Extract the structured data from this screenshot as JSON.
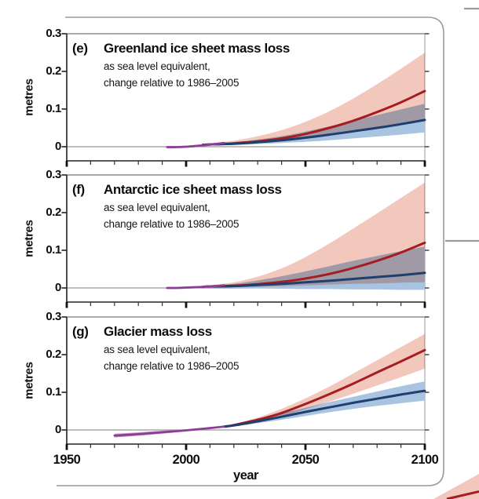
{
  "figure": {
    "ylabel": "metres",
    "xlabel": "year",
    "y_tick_labels": [
      "0.3",
      "0.2",
      "0.1",
      "0"
    ],
    "x_tick_labels": [
      "1950",
      "2000",
      "2050",
      "2100"
    ],
    "panels": [
      {
        "label": "(e)",
        "title": "Greenland ice sheet mass loss",
        "subtitle_1": "as sea level equivalent,",
        "subtitle_2": "change relative to 1986–2005"
      },
      {
        "label": "(f)",
        "title": "Antarctic ice sheet mass loss",
        "subtitle_1": "as sea level equivalent,",
        "subtitle_2": "change relative to 1986–2005"
      },
      {
        "label": "(g)",
        "title": "Glacier mass loss",
        "subtitle_1": "as sea level equivalent,",
        "subtitle_2": "change relative to 1986–2005"
      }
    ],
    "colors": {
      "rcp85_line": "#a51c21",
      "rcp85_band": "#f2c8bd",
      "rcp26_line": "#203e6e",
      "rcp26_band": "#a8c4e0",
      "observed_line": "#8d3c96",
      "observed_band": "#c48cc8",
      "frame": "#9a9a9a",
      "axis": "#222222",
      "zero_line": "#999999"
    }
  },
  "chart_data": [
    {
      "panel": "e",
      "type": "line",
      "title": "Greenland ice sheet mass loss",
      "units": "metres (sea level equivalent, change relative to 1986–2005)",
      "xlim": [
        1950,
        2100
      ],
      "ylim": [
        -0.0375,
        0.3
      ],
      "x_ticks": [
        1950,
        2000,
        2050,
        2100
      ],
      "y_ticks": [
        0,
        0.1,
        0.2,
        0.3
      ],
      "observed": {
        "x": [
          1992,
          1996,
          2000,
          2004,
          2008,
          2012,
          2016
        ],
        "y": [
          -0.001,
          -0.001,
          0.0,
          0.002,
          0.004,
          0.007,
          0.01
        ],
        "lo": [
          -0.004,
          -0.004,
          -0.003,
          -0.001,
          0.001,
          0.004,
          0.008
        ],
        "hi": [
          0.002,
          0.002,
          0.003,
          0.005,
          0.007,
          0.01,
          0.012
        ]
      },
      "rcp85": {
        "x": [
          2007,
          2010,
          2020,
          2030,
          2040,
          2050,
          2060,
          2070,
          2080,
          2090,
          2100
        ],
        "y": [
          0.005,
          0.006,
          0.009,
          0.014,
          0.022,
          0.034,
          0.05,
          0.069,
          0.092,
          0.118,
          0.148
        ],
        "lo": [
          0.003,
          0.004,
          0.006,
          0.009,
          0.014,
          0.021,
          0.03,
          0.041,
          0.049,
          0.058,
          0.068
        ],
        "hi": [
          0.007,
          0.009,
          0.016,
          0.028,
          0.044,
          0.066,
          0.094,
          0.128,
          0.166,
          0.207,
          0.25
        ]
      },
      "rcp26": {
        "x": [
          2007,
          2010,
          2020,
          2030,
          2040,
          2050,
          2060,
          2070,
          2080,
          2090,
          2100
        ],
        "y": [
          0.005,
          0.006,
          0.008,
          0.012,
          0.017,
          0.024,
          0.032,
          0.041,
          0.05,
          0.06,
          0.071
        ],
        "lo": [
          0.003,
          0.004,
          0.005,
          0.007,
          0.01,
          0.013,
          0.017,
          0.022,
          0.027,
          0.032,
          0.038
        ],
        "hi": [
          0.007,
          0.008,
          0.012,
          0.019,
          0.028,
          0.04,
          0.054,
          0.069,
          0.084,
          0.099,
          0.114
        ]
      }
    },
    {
      "panel": "f",
      "type": "line",
      "title": "Antarctic ice sheet mass loss",
      "units": "metres (sea level equivalent, change relative to 1986–2005)",
      "xlim": [
        1950,
        2100
      ],
      "ylim": [
        -0.0375,
        0.3
      ],
      "x_ticks": [
        1950,
        2000,
        2050,
        2100
      ],
      "y_ticks": [
        0,
        0.1,
        0.2,
        0.3
      ],
      "observed": {
        "x": [
          1992,
          1996,
          2000,
          2004,
          2008,
          2012,
          2016
        ],
        "y": [
          0.0,
          0.0,
          0.001,
          0.002,
          0.003,
          0.005,
          0.007
        ],
        "lo": [
          -0.003,
          -0.003,
          -0.002,
          -0.001,
          0.0,
          0.002,
          0.005
        ],
        "hi": [
          0.003,
          0.003,
          0.004,
          0.005,
          0.006,
          0.008,
          0.009
        ]
      },
      "rcp85": {
        "x": [
          2007,
          2010,
          2020,
          2030,
          2040,
          2050,
          2060,
          2070,
          2080,
          2090,
          2100
        ],
        "y": [
          0.003,
          0.004,
          0.006,
          0.01,
          0.016,
          0.025,
          0.037,
          0.053,
          0.072,
          0.094,
          0.12
        ],
        "lo": [
          0.001,
          0.001,
          0.002,
          0.003,
          0.005,
          0.007,
          0.009,
          0.011,
          0.012,
          0.014,
          0.015
        ],
        "hi": [
          0.005,
          0.007,
          0.015,
          0.03,
          0.052,
          0.082,
          0.118,
          0.158,
          0.198,
          0.239,
          0.28
        ]
      },
      "rcp26": {
        "x": [
          2007,
          2010,
          2020,
          2030,
          2040,
          2050,
          2060,
          2070,
          2080,
          2090,
          2100
        ],
        "y": [
          0.003,
          0.004,
          0.005,
          0.008,
          0.011,
          0.015,
          0.019,
          0.024,
          0.029,
          0.034,
          0.04
        ],
        "lo": [
          0.001,
          0.001,
          0.0,
          -0.001,
          -0.002,
          -0.003,
          -0.003,
          -0.004,
          -0.004,
          -0.005,
          -0.005
        ],
        "hi": [
          0.005,
          0.006,
          0.011,
          0.02,
          0.031,
          0.044,
          0.058,
          0.072,
          0.085,
          0.098,
          0.11
        ]
      }
    },
    {
      "panel": "g",
      "type": "line",
      "title": "Glacier mass loss",
      "units": "metres (sea level equivalent, change relative to 1986–2005)",
      "xlim": [
        1950,
        2100
      ],
      "ylim": [
        -0.0375,
        0.3
      ],
      "x_ticks": [
        1950,
        2000,
        2050,
        2100
      ],
      "y_ticks": [
        0,
        0.1,
        0.2,
        0.3
      ],
      "observed": {
        "x": [
          1970,
          1980,
          1990,
          2000,
          2010,
          2016
        ],
        "y": [
          -0.015,
          -0.011,
          -0.006,
          -0.001,
          0.005,
          0.009
        ],
        "lo": [
          -0.02,
          -0.0155,
          -0.01,
          -0.004,
          0.002,
          0.007
        ],
        "hi": [
          -0.01,
          -0.0065,
          -0.002,
          0.002,
          0.008,
          0.011
        ]
      },
      "rcp85": {
        "x": [
          2016,
          2020,
          2030,
          2040,
          2050,
          2060,
          2070,
          2080,
          2090,
          2100
        ],
        "y": [
          0.009,
          0.013,
          0.027,
          0.045,
          0.069,
          0.095,
          0.123,
          0.153,
          0.182,
          0.212
        ],
        "lo": [
          0.007,
          0.01,
          0.022,
          0.036,
          0.055,
          0.075,
          0.096,
          0.118,
          0.14,
          0.163
        ],
        "hi": [
          0.011,
          0.016,
          0.033,
          0.056,
          0.084,
          0.115,
          0.15,
          0.185,
          0.22,
          0.255
        ]
      },
      "rcp26": {
        "x": [
          2016,
          2020,
          2030,
          2040,
          2050,
          2060,
          2070,
          2080,
          2090,
          2100
        ],
        "y": [
          0.009,
          0.012,
          0.023,
          0.035,
          0.048,
          0.06,
          0.072,
          0.083,
          0.094,
          0.104
        ],
        "lo": [
          0.007,
          0.009,
          0.018,
          0.027,
          0.037,
          0.047,
          0.056,
          0.064,
          0.071,
          0.078
        ],
        "hi": [
          0.011,
          0.015,
          0.029,
          0.044,
          0.059,
          0.074,
          0.088,
          0.102,
          0.116,
          0.129
        ]
      }
    }
  ]
}
